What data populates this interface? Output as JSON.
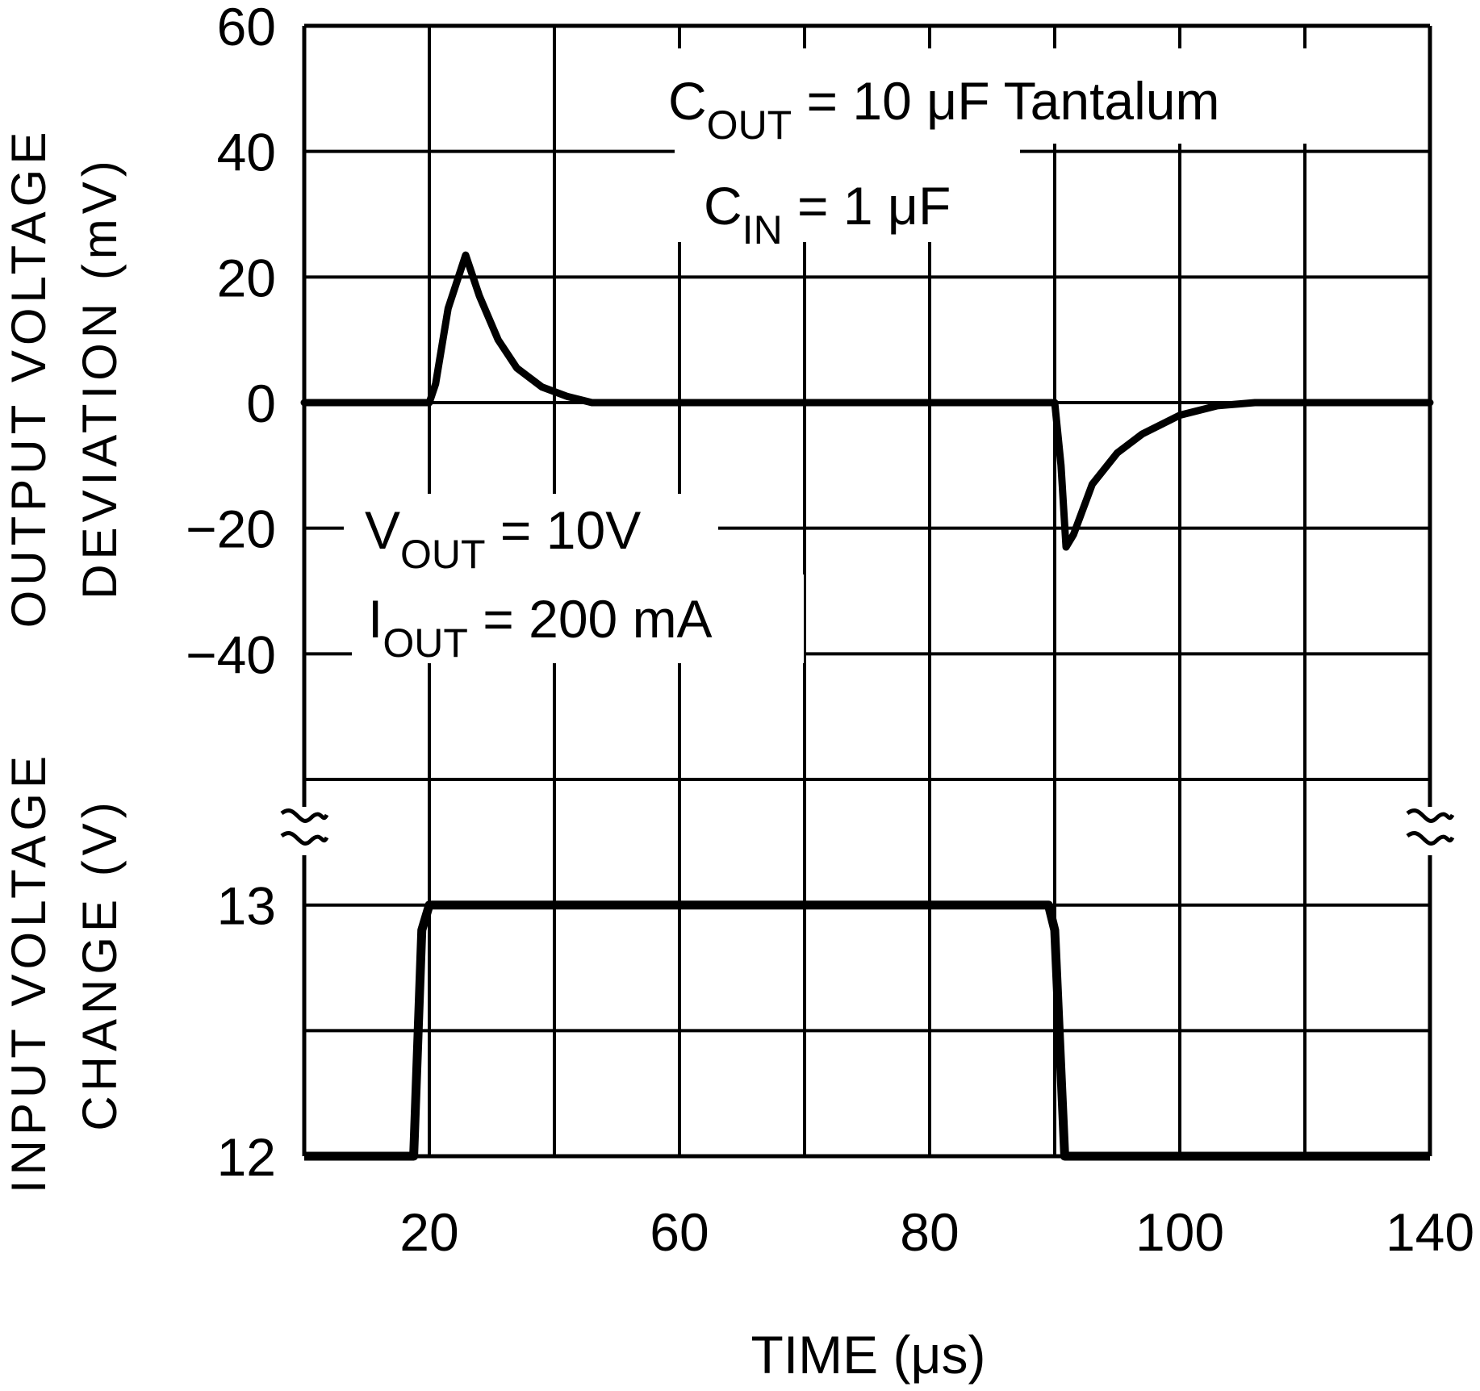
{
  "chart_data": [
    {
      "type": "line",
      "panel": "top",
      "ylabel_lines": [
        "OUTPUT VOLTAGE",
        "DEVIATION (mV)"
      ],
      "ylim": [
        -60,
        60
      ],
      "y_ticks": [
        "60",
        "40",
        "20",
        "0",
        "-20",
        "-40"
      ],
      "y_tick_values": [
        60,
        40,
        20,
        0,
        -20,
        -40
      ],
      "grid": true,
      "series": [
        {
          "x": [
            0,
            20,
            21,
            23,
            25.8,
            28,
            31,
            34,
            38,
            42,
            46,
            90,
            90.5,
            90.9,
            91.5,
            93,
            95,
            97,
            100,
            106,
            112,
            140
          ],
          "y": [
            0,
            0,
            3,
            15,
            23.5,
            17,
            10,
            5.5,
            2.5,
            1,
            0,
            0,
            -10,
            -23,
            -21,
            -13,
            -8,
            -5,
            -2,
            -0.5,
            0,
            0
          ]
        }
      ],
      "annotations": [
        {
          "main": "C",
          "sub": "OUT",
          "rest": " = 10 μF Tantalum"
        },
        {
          "main": "C",
          "sub": "IN",
          "rest": " = 1 μF"
        },
        {
          "main": "V",
          "sub": "OUT",
          "rest": " = 10V"
        },
        {
          "main": "I",
          "sub": "OUT",
          "rest": " = 200 mA"
        }
      ]
    },
    {
      "type": "line",
      "panel": "bottom",
      "ylabel_lines": [
        "INPUT VOLTAGE",
        "CHANGE (V)"
      ],
      "ylim": [
        12,
        13
      ],
      "y_ticks": [
        "13",
        "12"
      ],
      "y_tick_values": [
        13,
        12
      ],
      "axis_break": true,
      "grid": true,
      "series": [
        {
          "x": [
            0,
            17.5,
            18.8,
            20,
            89.5,
            90,
            90.8,
            140
          ],
          "y": [
            12,
            12,
            12.9,
            13,
            13,
            12.9,
            12,
            12
          ]
        }
      ]
    }
  ],
  "x_axis": {
    "xlabel": "TIME (μs)",
    "tick_labels": [
      "20",
      "60",
      "80",
      "100",
      "140"
    ],
    "tick_values": [
      20,
      60,
      80,
      100,
      140
    ],
    "xlim": [
      0,
      140
    ]
  },
  "colors": {
    "line": "#000000",
    "grid": "#000000",
    "background": "#ffffff"
  }
}
